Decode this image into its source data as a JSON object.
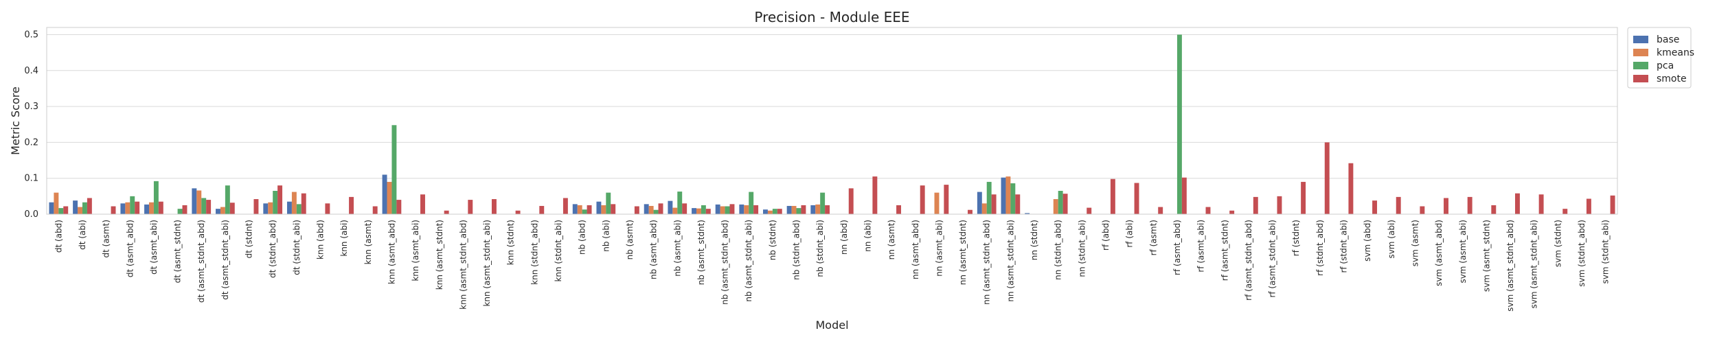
{
  "chart_data": {
    "type": "bar",
    "title": "Precision - Module EEE",
    "xlabel": "Model",
    "ylabel": "Metric Score",
    "ylim": [
      0,
      0.52
    ],
    "yticks": [
      "0.0",
      "0.1",
      "0.2",
      "0.3",
      "0.4",
      "0.5"
    ],
    "grid": true,
    "legend_position": "outside-top-right",
    "categories": [
      "dt (abd)",
      "dt (abi)",
      "dt (asmt)",
      "dt (asmt_abd)",
      "dt (asmt_abi)",
      "dt (asmt_stdnt)",
      "dt (asmt_stdnt_abd)",
      "dt (asmt_stdnt_abi)",
      "dt (stdnt)",
      "dt (stdnt_abd)",
      "dt (stdnt_abi)",
      "knn (abd)",
      "knn (abi)",
      "knn (asmt)",
      "knn (asmt_abd)",
      "knn (asmt_abi)",
      "knn (asmt_stdnt)",
      "knn (asmt_stdnt_abd)",
      "knn (asmt_stdnt_abi)",
      "knn (stdnt)",
      "knn (stdnt_abd)",
      "knn (stdnt_abi)",
      "nb (abd)",
      "nb (abi)",
      "nb (asmt)",
      "nb (asmt_abd)",
      "nb (asmt_abi)",
      "nb (asmt_stdnt)",
      "nb (asmt_stdnt_abd)",
      "nb (asmt_stdnt_abi)",
      "nb (stdnt)",
      "nb (stdnt_abd)",
      "nb (stdnt_abi)",
      "nn (abd)",
      "nn (abi)",
      "nn (asmt)",
      "nn (asmt_abd)",
      "nn (asmt_abi)",
      "nn (asmt_stdnt)",
      "nn (asmt_stdnt_abd)",
      "nn (asmt_stdnt_abi)",
      "nn (stdnt)",
      "nn (stdnt_abd)",
      "nn (stdnt_abi)",
      "rf (abd)",
      "rf (abi)",
      "rf (asmt)",
      "rf (asmt_abd)",
      "rf (asmt_abi)",
      "rf (asmt_stdnt)",
      "rf (asmt_stdnt_abd)",
      "rf (asmt_stdnt_abi)",
      "rf (stdnt)",
      "rf (stdnt_abd)",
      "rf (stdnt_abi)",
      "svm (abd)",
      "svm (abi)",
      "svm (asmt)",
      "svm (asmt_abd)",
      "svm (asmt_abi)",
      "svm (asmt_stdnt)",
      "svm (asmt_stdnt_abd)",
      "svm (asmt_stdnt_abi)",
      "svm (stdnt)",
      "svm (stdnt_abd)",
      "svm (stdnt_abi)"
    ],
    "series": [
      {
        "name": "base",
        "color": "#4c72b0",
        "values": [
          0.033,
          0.038,
          0,
          0.03,
          0.027,
          0,
          0.072,
          0.015,
          0,
          0.03,
          0.035,
          0,
          0,
          0,
          0.11,
          0,
          0,
          0,
          0,
          0,
          0,
          0,
          0.028,
          0.035,
          0,
          0.028,
          0.037,
          0.017,
          0.027,
          0.027,
          0.013,
          0.023,
          0.025,
          0,
          0,
          0,
          0,
          0,
          0,
          0.062,
          0.102,
          0.003,
          0,
          0,
          0,
          0,
          0,
          0,
          0,
          0,
          0,
          0,
          0,
          0,
          0,
          0,
          0,
          0,
          0,
          0,
          0,
          0,
          0,
          0,
          0,
          0
        ]
      },
      {
        "name": "kmeans",
        "color": "#dd8452",
        "values": [
          0.06,
          0.02,
          0,
          0.033,
          0.033,
          0,
          0.066,
          0.02,
          0,
          0.033,
          0.062,
          0,
          0,
          0,
          0.09,
          0,
          0,
          0,
          0,
          0,
          0,
          0,
          0.025,
          0.025,
          0,
          0.023,
          0.018,
          0.016,
          0.022,
          0.025,
          0.01,
          0.023,
          0.027,
          0,
          0,
          0,
          0,
          0.06,
          0,
          0.03,
          0.105,
          0,
          0.042,
          0,
          0,
          0,
          0,
          0,
          0,
          0,
          0,
          0,
          0,
          0,
          0,
          0,
          0,
          0,
          0,
          0,
          0,
          0,
          0,
          0,
          0,
          0
        ]
      },
      {
        "name": "pca",
        "color": "#55a868",
        "values": [
          0.017,
          0.033,
          0,
          0.05,
          0.092,
          0.015,
          0.045,
          0.08,
          0,
          0.065,
          0.028,
          0,
          0,
          0,
          0.248,
          0,
          0,
          0,
          0,
          0,
          0,
          0,
          0.013,
          0.06,
          0,
          0.012,
          0.063,
          0.025,
          0.022,
          0.062,
          0.015,
          0.017,
          0.06,
          0,
          0,
          0,
          0,
          0,
          0,
          0.09,
          0.086,
          0,
          0.065,
          0,
          0,
          0,
          0,
          0.5,
          0,
          0,
          0,
          0,
          0,
          0,
          0,
          0,
          0,
          0,
          0,
          0,
          0,
          0,
          0,
          0,
          0,
          0
        ]
      },
      {
        "name": "smote",
        "color": "#c44e52",
        "values": [
          0.022,
          0.045,
          0.022,
          0.035,
          0.035,
          0.025,
          0.04,
          0.032,
          0.042,
          0.08,
          0.058,
          0.03,
          0.048,
          0.022,
          0.04,
          0.055,
          0.01,
          0.04,
          0.042,
          0.01,
          0.023,
          0.045,
          0.025,
          0.028,
          0.022,
          0.03,
          0.03,
          0.015,
          0.028,
          0.025,
          0.015,
          0.025,
          0.025,
          0.072,
          0.105,
          0.025,
          0.08,
          0.082,
          0.012,
          0.055,
          0.055,
          0,
          0.057,
          0.018,
          0.098,
          0.087,
          0.02,
          0.102,
          0.02,
          0.01,
          0.048,
          0.05,
          0.09,
          0.2,
          0.142,
          0.038,
          0.048,
          0.022,
          0.045,
          0.048,
          0.025,
          0.058,
          0.055,
          0.015,
          0.043,
          0.052
        ]
      }
    ]
  }
}
